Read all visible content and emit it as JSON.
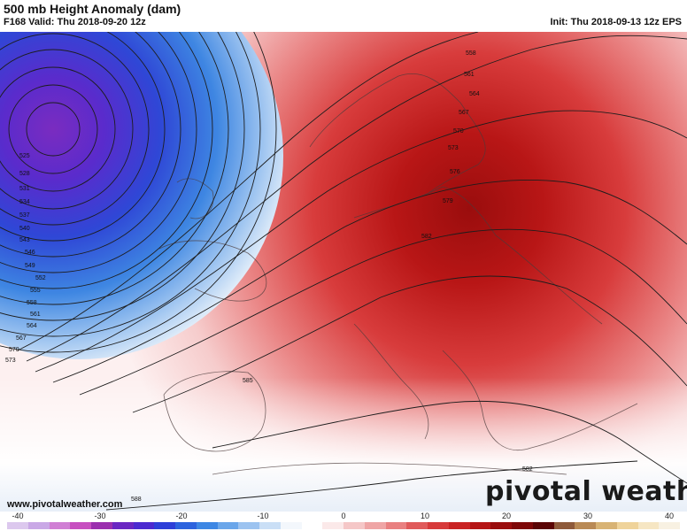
{
  "header": {
    "title": "500 mb Height Anomaly (dam)",
    "valid": "F168 Valid: Thu 2018-09-20 12z",
    "init": "Init: Thu 2018-09-13 12z EPS"
  },
  "footer": {
    "website": "www.pivotalweather.com",
    "brand": "pivotal weather"
  },
  "contour_labels": [
    "525",
    "528",
    "531",
    "534",
    "537",
    "540",
    "543",
    "546",
    "549",
    "552",
    "555",
    "558",
    "561",
    "564",
    "567",
    "570",
    "573",
    "558",
    "561",
    "564",
    "567",
    "570",
    "573",
    "576",
    "579",
    "582",
    "585",
    "588",
    "582"
  ],
  "colorbar": {
    "ticks": [
      "-40",
      "-30",
      "-20",
      "-10",
      "0",
      "10",
      "20",
      "30",
      "40"
    ],
    "colors": [
      "#dcc8ee",
      "#c9a8e6",
      "#d07fd4",
      "#c74fc0",
      "#9b2fae",
      "#6a27c2",
      "#4b2ad0",
      "#2d3fd8",
      "#2c63de",
      "#3d87e4",
      "#6aa6ea",
      "#9cc3f0",
      "#cadff6",
      "#f3f7fc",
      "#ffffff",
      "#fbe9e9",
      "#f5c7c7",
      "#efa5a5",
      "#e98080",
      "#e05a5a",
      "#d73a3a",
      "#c92323",
      "#b51515",
      "#9a0d0d",
      "#7e0808",
      "#5a0505",
      "#8e5a3a",
      "#b98a55",
      "#d8b374",
      "#efd39a",
      "#f6e6c3",
      "#f8f1e2"
    ]
  },
  "colors": {
    "low_center": "#6a27c2",
    "high_center": "#a40f0f",
    "background": "#ffffff"
  }
}
